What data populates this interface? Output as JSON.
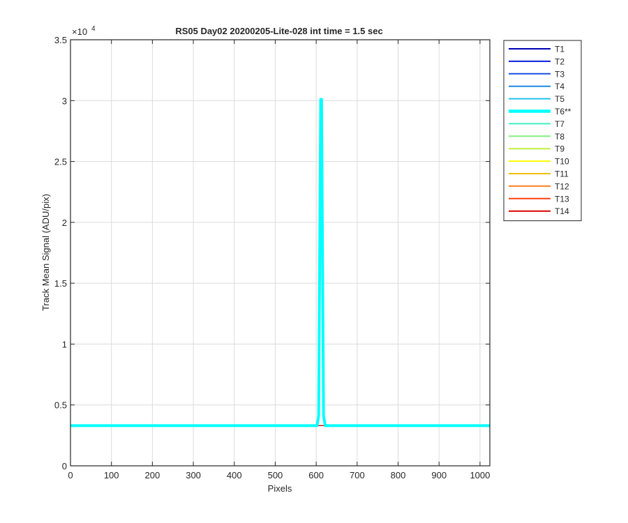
{
  "chart_data": {
    "type": "line",
    "title": "RS05 Day02 20200205-Lite-028 int time = 1.5 sec",
    "xlabel": "Pixels",
    "ylabel": "Track Mean Signal (ADU/pix)",
    "xlim": [
      0,
      1024
    ],
    "ylim": [
      0,
      35000
    ],
    "x_ticks": [
      0,
      100,
      200,
      300,
      400,
      500,
      600,
      700,
      800,
      900,
      1000
    ],
    "x_tick_labels": [
      "0",
      "100",
      "200",
      "300",
      "400",
      "500",
      "600",
      "700",
      "800",
      "900",
      "1000"
    ],
    "y_ticks": [
      0,
      5000,
      10000,
      15000,
      20000,
      25000,
      30000,
      35000
    ],
    "y_tick_labels": [
      "0",
      "0.5",
      "1",
      "1.5",
      "2",
      "2.5",
      "3",
      "3.5"
    ],
    "y_exponent_base": "×10",
    "y_exponent_power": "4",
    "grid": true,
    "legend_position": "outside-right",
    "baseline_value": 3300,
    "peak": {
      "series": "T6**",
      "x_center": 612,
      "value": 30100,
      "half_width": 6
    },
    "series": [
      {
        "name": "T1",
        "color": "#0000b3",
        "highlight": false
      },
      {
        "name": "T2",
        "color": "#0a1ed9",
        "highlight": false
      },
      {
        "name": "T3",
        "color": "#1a4fe6",
        "highlight": false
      },
      {
        "name": "T4",
        "color": "#1f8ae0",
        "highlight": false
      },
      {
        "name": "T5",
        "color": "#20c0f0",
        "highlight": false
      },
      {
        "name": "T6**",
        "color": "#00ffff",
        "highlight": true
      },
      {
        "name": "T7",
        "color": "#40f0c0",
        "highlight": false
      },
      {
        "name": "T8",
        "color": "#80f080",
        "highlight": false
      },
      {
        "name": "T9",
        "color": "#c0f040",
        "highlight": false
      },
      {
        "name": "T10",
        "color": "#ffff00",
        "highlight": false
      },
      {
        "name": "T11",
        "color": "#f0c000",
        "highlight": false
      },
      {
        "name": "T12",
        "color": "#ff8020",
        "highlight": false
      },
      {
        "name": "T13",
        "color": "#ff4010",
        "highlight": false
      },
      {
        "name": "T14",
        "color": "#e00000",
        "highlight": false
      }
    ]
  }
}
